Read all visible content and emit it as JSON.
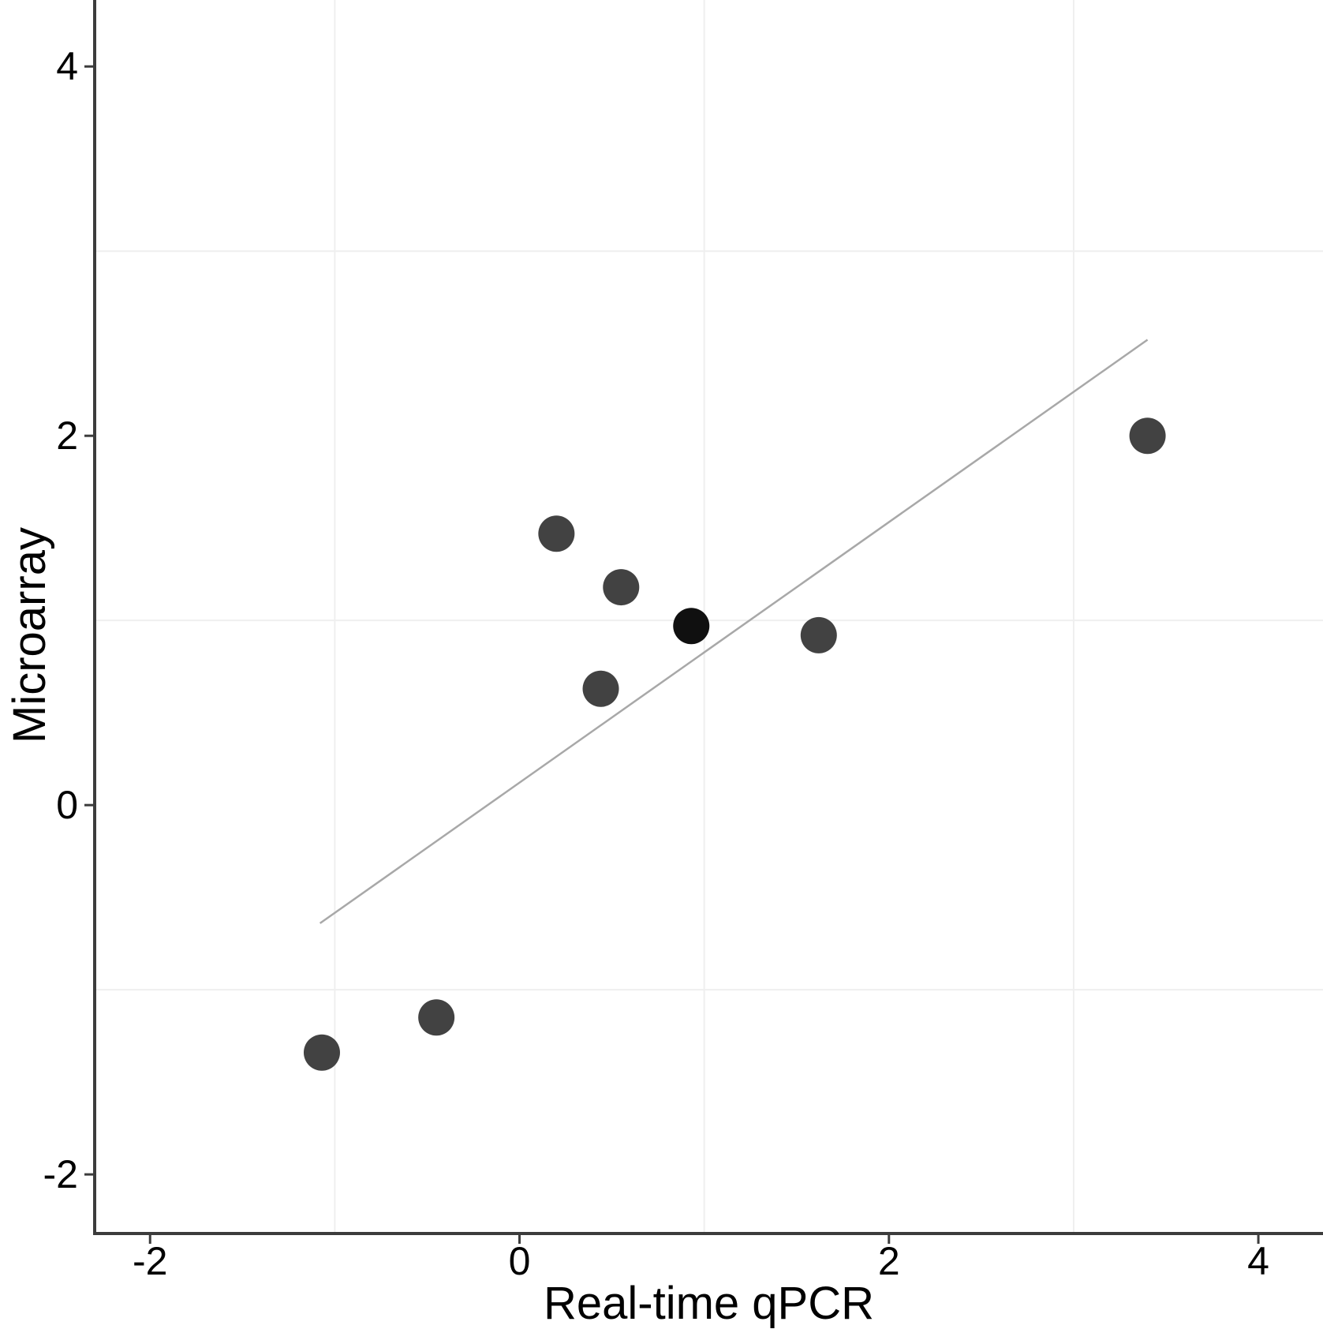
{
  "chart_data": {
    "type": "scatter",
    "title": "",
    "xlabel": "Real-time qPCR",
    "ylabel": "Microarray",
    "xlim": [
      -2.3,
      4.35
    ],
    "ylim": [
      -2.32,
      4.36
    ],
    "x_ticks": [
      -2,
      0,
      2,
      4
    ],
    "y_ticks": [
      4,
      2,
      0,
      -2
    ],
    "minor_gridlines_x": [
      -1,
      1,
      3
    ],
    "minor_gridlines_y": [
      3,
      1,
      -1
    ],
    "grid": "minor-only",
    "legend_position": "none",
    "points": [
      {
        "x": -1.07,
        "y": -1.34,
        "shade": "normal"
      },
      {
        "x": -0.45,
        "y": -1.15,
        "shade": "normal"
      },
      {
        "x": 0.2,
        "y": 1.47,
        "shade": "normal"
      },
      {
        "x": 0.44,
        "y": 0.63,
        "shade": "normal"
      },
      {
        "x": 0.55,
        "y": 1.18,
        "shade": "normal"
      },
      {
        "x": 0.93,
        "y": 0.97,
        "shade": "dark"
      },
      {
        "x": 1.62,
        "y": 0.92,
        "shade": "normal"
      },
      {
        "x": 3.4,
        "y": 2.0,
        "shade": "normal"
      }
    ],
    "trendline": {
      "x_start": -1.08,
      "y_start": -0.64,
      "x_end": 3.4,
      "y_end": 2.52
    },
    "colors": {
      "point": "#424242",
      "point_dark": "#101010",
      "trend_line": "#a8a8a8",
      "gridline": "#efefef",
      "axis": "#3c3c3c",
      "text": "#000000",
      "background": "#ffffff"
    }
  }
}
